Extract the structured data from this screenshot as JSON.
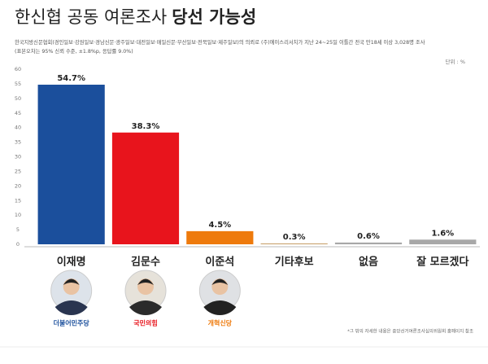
{
  "chart_data": {
    "type": "bar",
    "title": "한신협 공동 여론조사",
    "title_emphasis": "당선 가능성",
    "subtitle": [
      "한국지방신문협회(경인일보·강원일보·경남신문·광주일보·대전일보·매일신문·부산일보·전북일보·제주일보)의 의뢰로 (주)에이스리서치가 지난 24~25일 이틀간 전국 만18세 이상 3,028명 조사",
      "(표본오차는 95% 신뢰 수준, ±1.8%p, 응답률 9.0%)"
    ],
    "unit": "단위 : %",
    "categories": [
      "이재명",
      "김문수",
      "이준석",
      "기타후보",
      "없음",
      "잘 모르겠다"
    ],
    "values": [
      54.7,
      38.3,
      4.5,
      0.3,
      0.6,
      1.6
    ],
    "value_labels": [
      "54.7%",
      "38.3%",
      "4.5%",
      "0.3%",
      "0.6%",
      "1.6%"
    ],
    "colors": [
      "#1b4f9c",
      "#e8141c",
      "#ee7a0c",
      "#c8a06a",
      "#a8a8a8",
      "#a8a8a8"
    ],
    "parties": [
      "더불어민주당",
      "국민의힘",
      "개혁신당"
    ],
    "ylim": [
      0,
      60
    ],
    "yticks": [
      0,
      5,
      10,
      15,
      20,
      25,
      30,
      35,
      40,
      45,
      50,
      55,
      60
    ],
    "grid": false,
    "footnote": "*그 밖의 자세한 내용은 중앙선거여론조사심의위원회 홈페이지 참조"
  }
}
